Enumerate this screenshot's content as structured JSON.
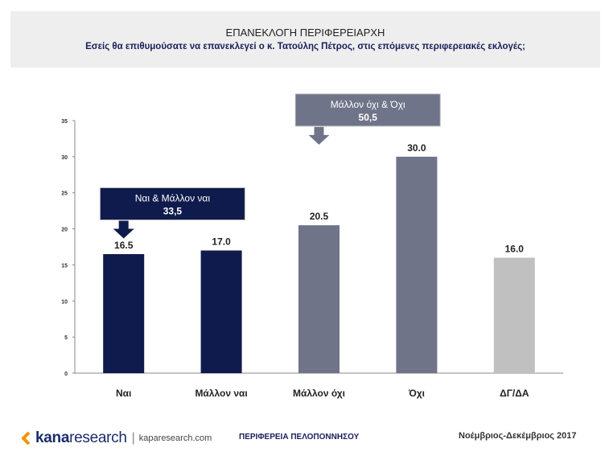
{
  "header": {
    "title": "ΕΠΑΝΕΚΛΟΓΗ ΠΕΡΙΦΕΡΕΙΑΡΧΗ",
    "subtitle": "Εσείς θα επιθυμούσατε να επανεκλεγεί ο κ. Τατούλης Πέτρος, στις επόμενες περιφερειακές εκλογές;"
  },
  "chart_data": {
    "type": "bar",
    "title": "ΕΠΑΝΕΚΛΟΓΗ ΠΕΡΙΦΕΡΕΙΑΡΧΗ",
    "categories": [
      "Ναι",
      "Μάλλον ναι",
      "Μάλλον όχι",
      "Όχι",
      "ΔΓ/ΔΑ"
    ],
    "values": [
      16.5,
      17.0,
      20.5,
      30.0,
      16.0
    ],
    "value_labels": [
      "16.5",
      "17.0",
      "20.5",
      "30.0",
      "16.0"
    ],
    "colors": [
      "#0f1b4c",
      "#0f1b4c",
      "#707489",
      "#707489",
      "#c0c0c0"
    ],
    "ylim": [
      0,
      35
    ],
    "yticks": [
      0,
      5,
      10,
      15,
      20,
      25,
      30,
      35
    ],
    "xlabel": "",
    "ylabel": "",
    "grid": false,
    "annotations": [
      {
        "label": "Ναι & Μάλλον ναι",
        "value": "33,5",
        "color": "#0f1b4c",
        "categories": [
          "Ναι",
          "Μάλλον ναι"
        ]
      },
      {
        "label": "Μάλλον όχι & Όχι",
        "value": "50,5",
        "color": "#707489",
        "categories": [
          "Μάλλον όχι",
          "Όχι"
        ]
      }
    ]
  },
  "footer": {
    "logo_bold": "kana",
    "logo_light": "research",
    "logo_sep": "|",
    "url": "kaparesearch.com",
    "region": "ΠΕΡΙΦΕΡΕΙΑ ΠΕΛΟΠΟΝΝΗΣΟΥ",
    "date": "Νοέμβριος-Δεκέμβριος 2017"
  }
}
